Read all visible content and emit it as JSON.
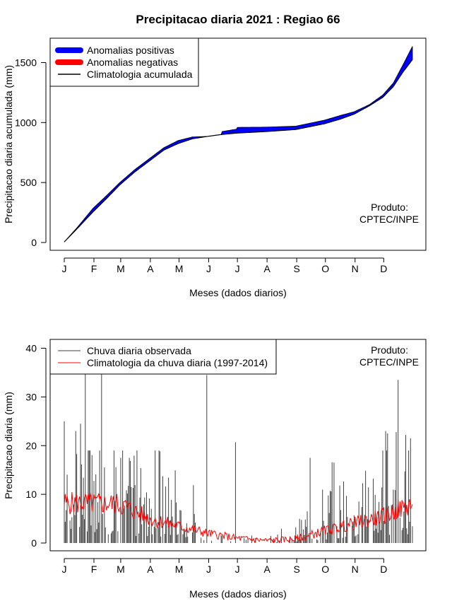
{
  "page_title": "Precipitacao diaria 2021 : Regiao 66",
  "chart_data": [
    {
      "type": "area",
      "title": "Precipitacao diaria 2021 : Regiao 66",
      "xlabel": "Meses (dados diarios)",
      "ylabel": "Precipitacao diaria acumulada (mm)",
      "ylim": [
        0,
        1700
      ],
      "y_ticks": [
        0,
        500,
        1000,
        1500
      ],
      "month_labels": [
        "J",
        "F",
        "M",
        "A",
        "M",
        "J",
        "J",
        "A",
        "S",
        "O",
        "N",
        "D"
      ],
      "legend": {
        "position": "top-left",
        "entries": [
          {
            "label": "Anomalias positivas",
            "color": "#0000ff"
          },
          {
            "label": "Anomalias negativas",
            "color": "#ff0000"
          },
          {
            "label": "Climatologia acumulada",
            "color": "#000000"
          }
        ]
      },
      "annotation": [
        "Produto:",
        "CPTEC/INPE"
      ],
      "observed_anchors": {
        "day": [
          1,
          15,
          31,
          45,
          59,
          75,
          90,
          105,
          120,
          135,
          151,
          165,
          166,
          181,
          182,
          212,
          243,
          273,
          290,
          304,
          320,
          334,
          345,
          355,
          365
        ],
        "value": [
          5,
          130,
          285,
          390,
          500,
          610,
          700,
          790,
          850,
          880,
          885,
          895,
          925,
          945,
          960,
          962,
          970,
          1020,
          1060,
          1090,
          1150,
          1230,
          1330,
          1480,
          1635
        ]
      },
      "climatology_anchors": {
        "day": [
          1,
          15,
          31,
          45,
          59,
          75,
          90,
          105,
          120,
          135,
          151,
          165,
          181,
          212,
          243,
          273,
          290,
          304,
          320,
          334,
          345,
          355,
          365
        ],
        "value": [
          5,
          120,
          255,
          365,
          480,
          590,
          680,
          770,
          825,
          865,
          885,
          900,
          912,
          925,
          942,
          990,
          1030,
          1070,
          1140,
          1210,
          1300,
          1420,
          1525
        ]
      }
    },
    {
      "type": "bar",
      "title": "",
      "xlabel": "Meses (dados diarios)",
      "ylabel": "Precipitacao diaria (mm)",
      "ylim": [
        0,
        42
      ],
      "y_ticks": [
        0,
        10,
        20,
        30,
        40
      ],
      "month_labels": [
        "J",
        "F",
        "M",
        "A",
        "M",
        "J",
        "J",
        "A",
        "S",
        "O",
        "N",
        "D"
      ],
      "legend": {
        "position": "top-left",
        "entries": [
          {
            "label": "Chuva diaria observada",
            "color": "#404040"
          },
          {
            "label": "Climatologia da chuva diaria (1997-2014)",
            "color": "#ff0000"
          }
        ]
      },
      "annotation": [
        "Produto:",
        "CPTEC/INPE"
      ],
      "notable_observed_peaks": [
        {
          "day": 1,
          "value": 25
        },
        {
          "day": 13,
          "value": 23
        },
        {
          "day": 18,
          "value": 24.5
        },
        {
          "day": 23,
          "value": 35
        },
        {
          "day": 40,
          "value": 35
        },
        {
          "day": 60,
          "value": 17.5
        },
        {
          "day": 150,
          "value": 34.5
        },
        {
          "day": 180,
          "value": 20.7
        },
        {
          "day": 258,
          "value": 17.5
        },
        {
          "day": 337,
          "value": 23
        },
        {
          "day": 339,
          "value": 22.5
        },
        {
          "day": 348,
          "value": 22.8
        },
        {
          "day": 350,
          "value": 33.5
        },
        {
          "day": 358,
          "value": 22.2
        },
        {
          "day": 363,
          "value": 21.5
        }
      ],
      "climatology_anchors": {
        "day": [
          1,
          31,
          59,
          90,
          120,
          151,
          181,
          212,
          243,
          273,
          304,
          334,
          365
        ],
        "value": [
          8.2,
          8.2,
          8.0,
          5.0,
          3.5,
          2.0,
          1.0,
          0.5,
          0.8,
          2.5,
          4.0,
          5.5,
          8.0
        ]
      }
    }
  ]
}
